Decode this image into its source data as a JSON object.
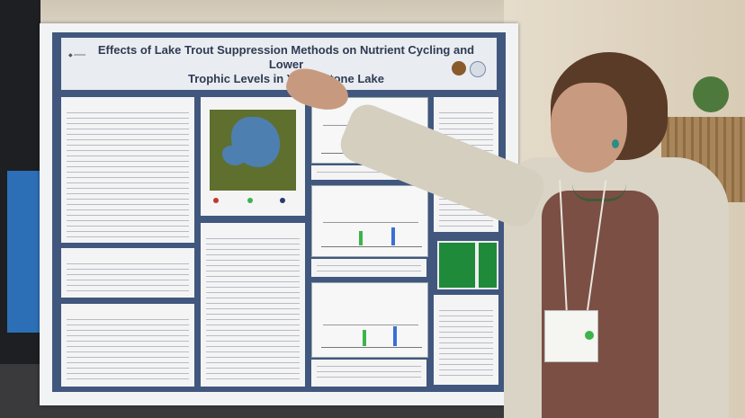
{
  "poster": {
    "title_line1": "Effects of Lake Trout Suppression Methods on Nutrient Cycling and Lower",
    "title_line2": "Trophic Levels in Yellowstone Lake"
  },
  "colors": {
    "poster_border": "#41577e",
    "poster_panel": "#f4f4f5",
    "map_land": "#5f6f2e",
    "map_lake": "#4d7fb1",
    "bar_green": "#3cb44b",
    "bar_blue": "#3b6fd6",
    "satellite_green": "#1f8a3a"
  }
}
